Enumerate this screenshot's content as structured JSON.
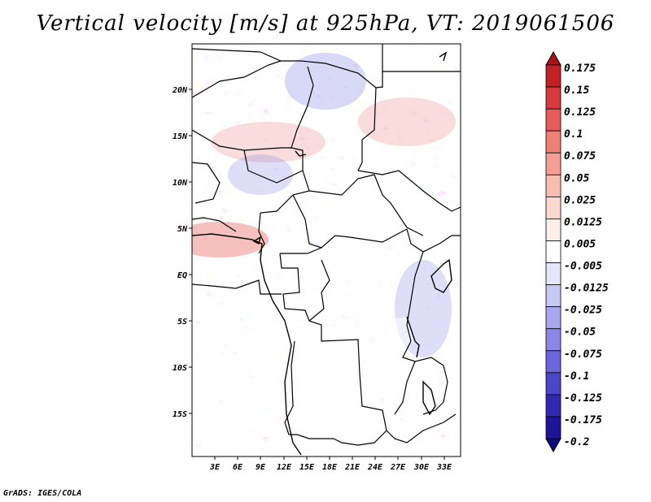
{
  "title": "Vertical velocity [m/s] at 925hPa, VT: 2019061506",
  "credit": "GrADS: IGES/COLA",
  "map": {
    "lat_ticks": [
      "20N",
      "15N",
      "10N",
      "5N",
      "EQ",
      "5S",
      "10S",
      "15S"
    ],
    "lon_ticks": [
      "3E",
      "6E",
      "9E",
      "12E",
      "15E",
      "18E",
      "21E",
      "24E",
      "27E",
      "30E",
      "33E"
    ]
  },
  "colorbar": {
    "levels": [
      "0.175",
      "0.15",
      "0.125",
      "0.1",
      "0.075",
      "0.05",
      "0.025",
      "0.0125",
      "0.005",
      "-0.005",
      "-0.0125",
      "-0.025",
      "-0.05",
      "-0.075",
      "-0.1",
      "-0.125",
      "-0.175",
      "-0.2"
    ],
    "colors": [
      "#a5151e",
      "#c42127",
      "#d8393c",
      "#e75c5a",
      "#ef8076",
      "#f59f94",
      "#f8bdb3",
      "#fbd8d0",
      "#fdeeea",
      "#ffffff",
      "#e6e6fa",
      "#c8c8f5",
      "#aaa7f0",
      "#8b86e8",
      "#6b66dd",
      "#4b45cc",
      "#3128b4",
      "#1d149a",
      "#0e0a80"
    ]
  },
  "colors": {
    "positive": "#e8746f",
    "negative": "#7d7de6",
    "border": "#000000"
  }
}
